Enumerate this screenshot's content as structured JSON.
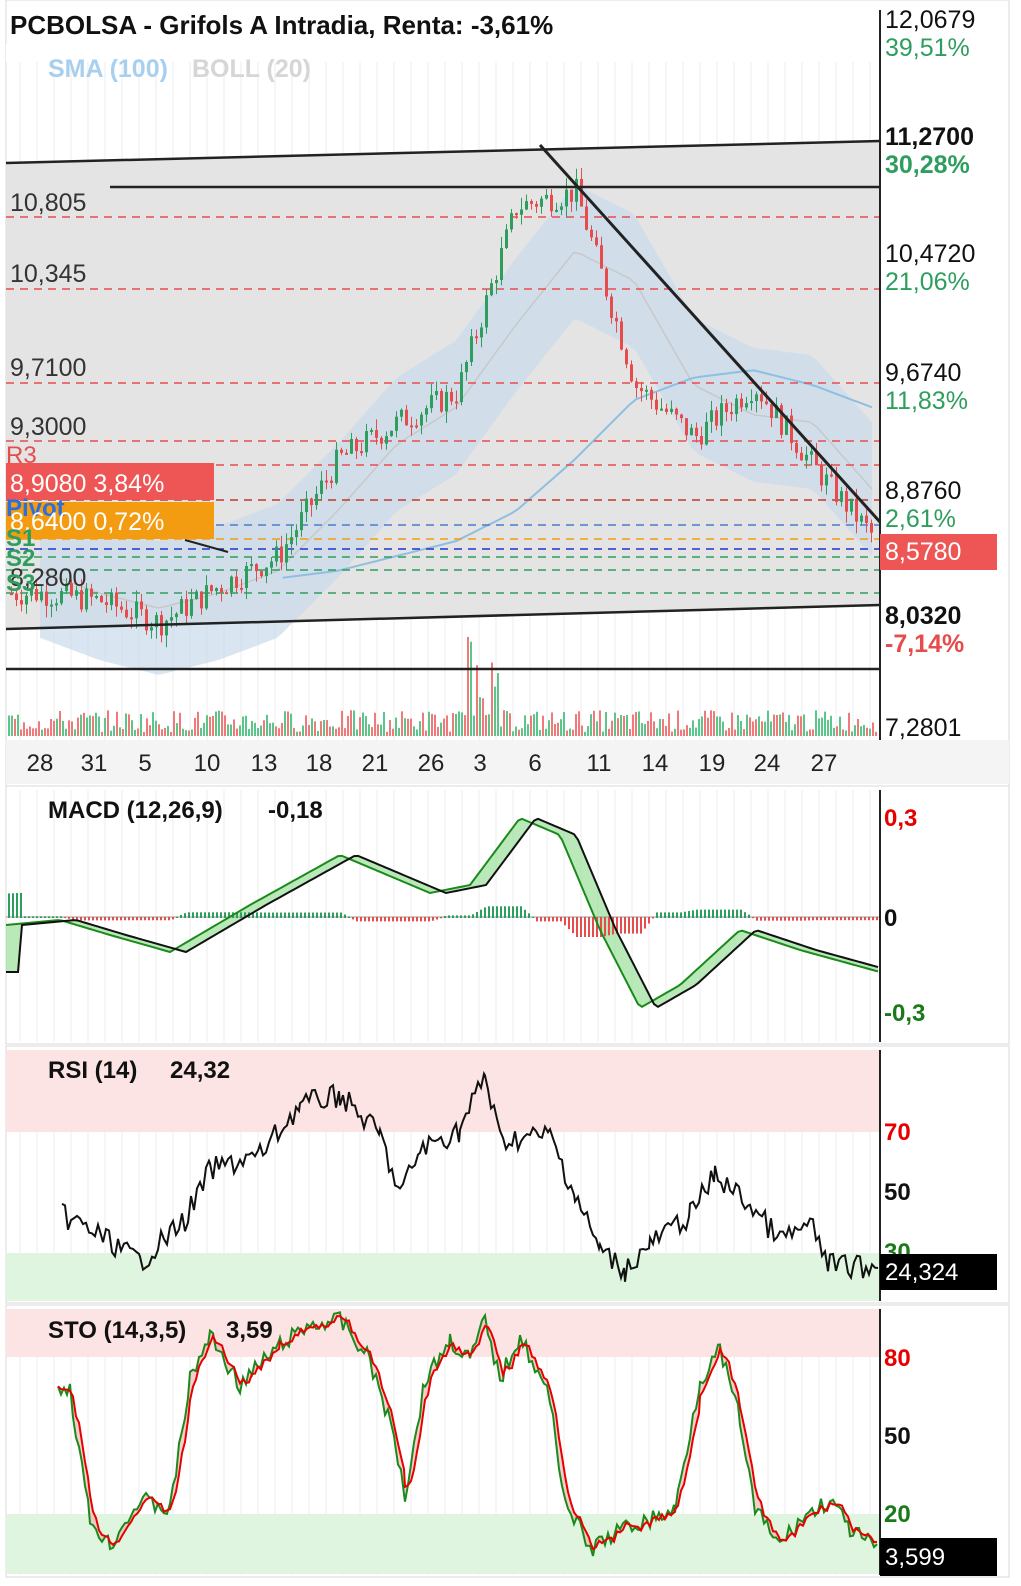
{
  "title": "PCBOLSA - Grifols A Intradia, Renta: -3,61%",
  "legend": {
    "sma": "SMA (100)",
    "boll": "BOLL (20)"
  },
  "colors": {
    "up": "#2e9e5e",
    "down": "#e74c4c",
    "sma": "#8fbfe0",
    "band": "#c9dcec",
    "pivot_box": "#f39c12",
    "r3_box": "#e74c4c",
    "last_box": "#ee5555",
    "black_box": "#000000",
    "macd_red": "#e60000",
    "macd_green": "#1a7a1a"
  },
  "price_axis": {
    "labels": [
      {
        "price": "12,0679",
        "pct": "39,51%",
        "pct_color": "up"
      },
      {
        "price": "11,2700",
        "pct": "30,28%",
        "pct_color": "up",
        "bold": true
      },
      {
        "price": "10,4720",
        "pct": "21,06%",
        "pct_color": "up"
      },
      {
        "price": "9,6740",
        "pct": "11,83%",
        "pct_color": "up"
      },
      {
        "price": "8,8760",
        "pct": "2,61%",
        "pct_color": "up"
      },
      {
        "price": "8,0320",
        "pct": "-7,14%",
        "pct_color": "down",
        "bold": true
      },
      {
        "price": "7,2801",
        "pct": "",
        "pct_color": "up"
      }
    ],
    "last_price": "8,5780"
  },
  "left_levels": [
    "10,805",
    "10,345",
    "9,7100",
    "9,3000",
    "8,2800"
  ],
  "pivots": {
    "r3": "R3",
    "r3_box": "8,9080  3,84%",
    "pivot": "Pivot",
    "pivot_box": "8,6400  0,72%",
    "s1": "S1",
    "s2": "S2",
    "s3": "S3"
  },
  "x_ticks": [
    "28",
    "31",
    "5",
    "10",
    "13",
    "18",
    "21",
    "26",
    "3",
    "6",
    "11",
    "14",
    "19",
    "24",
    "27"
  ],
  "macd": {
    "label": "MACD (12,26,9)",
    "value": "-0,18",
    "axis": [
      "0,3",
      "0",
      "-0,3"
    ]
  },
  "rsi": {
    "label": "RSI (14)",
    "value": "24,32",
    "axis": [
      "70",
      "50",
      "30"
    ],
    "last": "24,324"
  },
  "sto": {
    "label": "STO (14,3,5)",
    "value": "3,59",
    "axis": [
      "80",
      "50",
      "20"
    ],
    "last": "3,599"
  },
  "chart_data": {
    "type": "line",
    "title": "PCBOLSA - Grifols A Intradia, Renta: -3,61%",
    "x": [
      "28",
      "31",
      "5",
      "10",
      "13",
      "18",
      "21",
      "26",
      "3",
      "6",
      "11",
      "14",
      "19",
      "24",
      "27"
    ],
    "series": [
      {
        "name": "Grifols A",
        "values": [
          8.2,
          8.15,
          8.0,
          8.25,
          8.45,
          9.1,
          9.35,
          9.55,
          10.8,
          10.9,
          9.6,
          9.25,
          9.6,
          9.05,
          8.58
        ]
      },
      {
        "name": "SMA (100)",
        "values": [
          null,
          null,
          null,
          null,
          8.3,
          8.35,
          8.45,
          8.55,
          8.75,
          9.1,
          9.5,
          9.65,
          9.7,
          9.6,
          9.45
        ]
      },
      {
        "name": "BOLL (20)",
        "values": [
          8.35,
          8.2,
          8.1,
          8.2,
          8.35,
          8.75,
          9.2,
          9.45,
          10.0,
          10.5,
          10.3,
          9.6,
          9.4,
          9.35,
          8.9
        ]
      }
    ],
    "ylim": [
      7.2801,
      12.0679
    ]
  }
}
